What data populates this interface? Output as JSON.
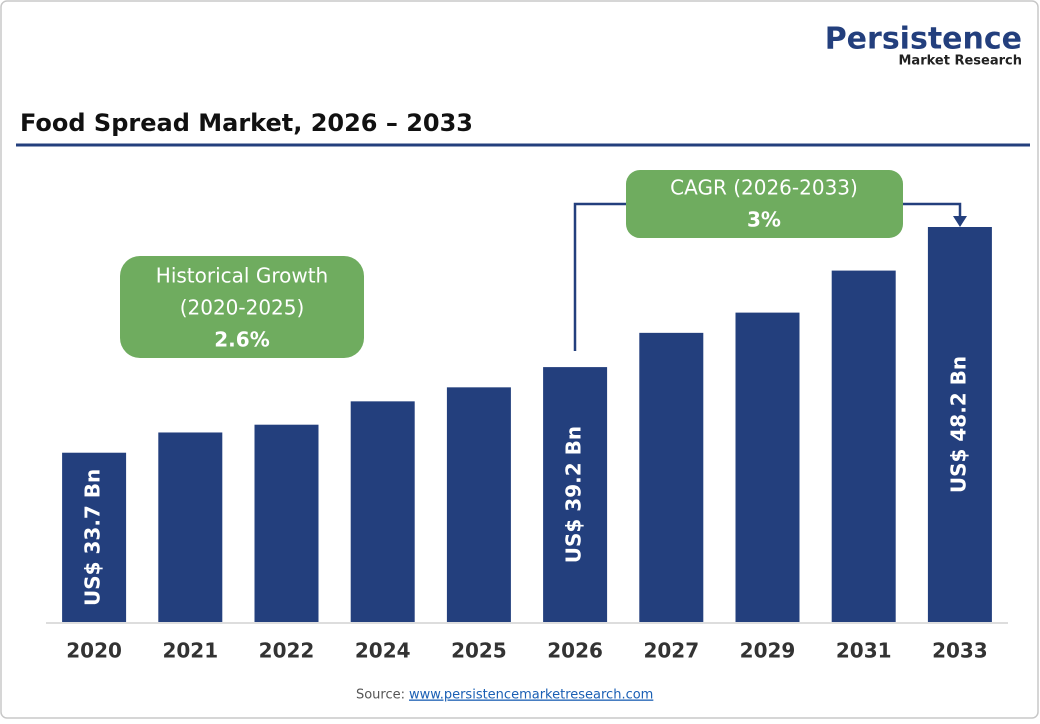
{
  "logo": {
    "name": "Persistence",
    "tagline": "Market Research"
  },
  "chart_data": {
    "type": "bar",
    "title": "Food Spread Market, 2026 – 2033",
    "categories": [
      "2020",
      "2021",
      "2022",
      "2024",
      "2025",
      "2026",
      "2027",
      "2029",
      "2031",
      "2033"
    ],
    "values": [
      33.7,
      35.0,
      35.5,
      37.0,
      37.9,
      39.2,
      41.4,
      42.7,
      45.4,
      48.2
    ],
    "value_labels": [
      "US$ 33.7 Bn",
      null,
      null,
      null,
      null,
      "US$ 39.2 Bn",
      null,
      null,
      null,
      "US$ 48.2 Bn"
    ],
    "color": "#233f7d",
    "annotations": {
      "historical": [
        "Historical Growth",
        "(2020-2025)",
        "2.6%"
      ],
      "cagr": [
        "CAGR (2026-2033)",
        "3%"
      ]
    }
  },
  "source": {
    "label": "Source:",
    "url": "www.persistencemarketresearch.com"
  }
}
